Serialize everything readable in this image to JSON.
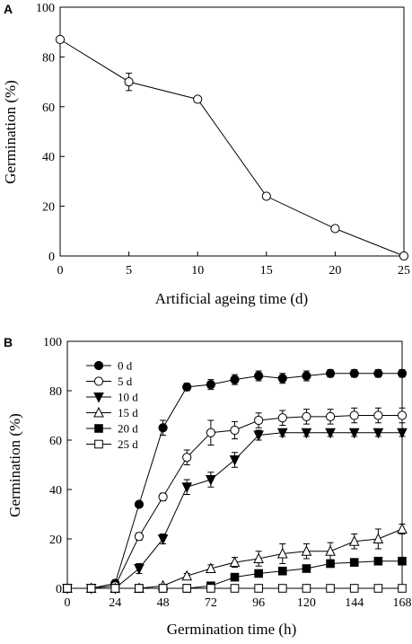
{
  "chart_data": [
    {
      "type": "line",
      "panel": "A",
      "title": "",
      "xlabel": "Artificial ageing time (d)",
      "ylabel": "Germination (%)",
      "xlim": [
        0,
        25
      ],
      "ylim": [
        0,
        100
      ],
      "xticks": [
        0,
        5,
        10,
        15,
        20,
        25
      ],
      "yticks": [
        0,
        20,
        40,
        60,
        80,
        100
      ],
      "grid": false,
      "series": [
        {
          "marker": "open-circle",
          "x": [
            0,
            5,
            10,
            15,
            20,
            25
          ],
          "y": [
            87,
            70,
            63,
            24,
            11,
            0
          ],
          "err": [
            0,
            3.5,
            0,
            0,
            0,
            0
          ]
        }
      ]
    },
    {
      "type": "line",
      "panel": "B",
      "title": "",
      "xlabel": "Germination time (h)",
      "ylabel": "Germination (%)",
      "xlim": [
        0,
        168
      ],
      "ylim": [
        0,
        100
      ],
      "xticks": [
        0,
        24,
        48,
        72,
        96,
        120,
        144,
        168
      ],
      "yticks": [
        0,
        20,
        40,
        60,
        80,
        100
      ],
      "grid": false,
      "legend_position": "top-left",
      "x": [
        0,
        12,
        24,
        36,
        48,
        60,
        72,
        84,
        96,
        108,
        120,
        132,
        144,
        156,
        168
      ],
      "series": [
        {
          "name": "0 d",
          "marker": "filled-circle",
          "values": [
            0,
            0,
            2,
            34,
            65,
            81.5,
            82.5,
            84.5,
            86,
            85,
            86,
            87,
            87,
            87,
            87
          ],
          "err": [
            0,
            0,
            0,
            0,
            3,
            1.5,
            2,
            2,
            2,
            2,
            2,
            1.5,
            1.5,
            1.5,
            1.5
          ]
        },
        {
          "name": "5 d",
          "marker": "open-circle",
          "values": [
            0,
            0,
            1,
            21,
            37,
            53,
            63,
            64,
            68,
            69,
            69.5,
            69.5,
            70,
            70,
            70
          ],
          "err": [
            0,
            0,
            0,
            1.5,
            1.5,
            3,
            5,
            3.5,
            3,
            3,
            3,
            3,
            3,
            3,
            3
          ]
        },
        {
          "name": "10 d",
          "marker": "filled-triangle-down",
          "values": [
            0,
            0,
            0,
            8,
            20,
            41,
            44,
            52,
            62,
            63,
            63,
            63,
            63,
            63,
            63
          ],
          "err": [
            0,
            0,
            0,
            2,
            2,
            3,
            3,
            3,
            2,
            1.5,
            1.5,
            1.5,
            1.5,
            1.5,
            1.5
          ]
        },
        {
          "name": "15 d",
          "marker": "open-triangle-up",
          "values": [
            0,
            0,
            0,
            0,
            1,
            5,
            8,
            10.5,
            12,
            14,
            15,
            15,
            19,
            20,
            24
          ],
          "err": [
            0,
            0,
            0,
            0,
            0,
            1,
            1.5,
            2,
            3,
            4,
            3,
            3.5,
            3,
            4,
            2
          ]
        },
        {
          "name": "20 d",
          "marker": "filled-square",
          "values": [
            0,
            0,
            0,
            0,
            0,
            0,
            1,
            4.5,
            6,
            7,
            8,
            10,
            10.5,
            11,
            11
          ],
          "err": [
            0,
            0,
            0,
            0,
            0,
            0,
            0,
            0,
            0,
            0,
            0,
            0,
            0,
            0,
            0
          ]
        },
        {
          "name": "25 d",
          "marker": "open-square",
          "values": [
            0,
            0,
            0,
            0,
            0,
            0,
            0,
            0,
            0,
            0,
            0,
            0,
            0,
            0,
            0
          ],
          "err": [
            0,
            0,
            0,
            0,
            0,
            0,
            0,
            0,
            0,
            0,
            0,
            0,
            0,
            0,
            0
          ]
        }
      ]
    }
  ],
  "panels": {
    "a": {
      "letter": "A",
      "xlabel": "Artificial ageing time (d)",
      "ylabel": "Germination (%)"
    },
    "b": {
      "letter": "B",
      "xlabel": "Germination time (h)",
      "ylabel": "Germination (%)"
    }
  }
}
